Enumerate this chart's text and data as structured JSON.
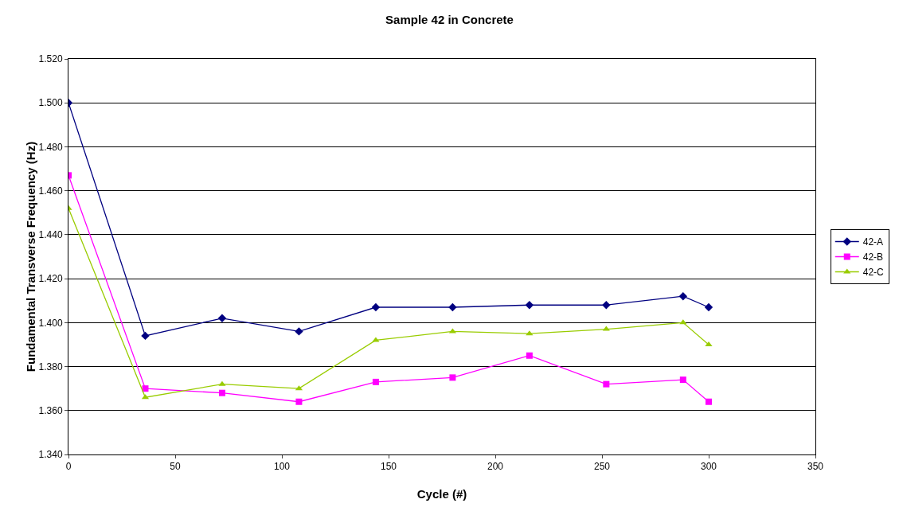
{
  "chart_data": {
    "type": "line",
    "title": "Sample 42 in Concrete",
    "xlabel": "Cycle (#)",
    "ylabel": "Fundamental Transverse Frequency (Hz)",
    "x": [
      0,
      36,
      72,
      108,
      144,
      180,
      216,
      252,
      288,
      300
    ],
    "series": [
      {
        "name": "42-A",
        "color": "#000080",
        "marker": "diamond",
        "values": [
          1.5,
          1.394,
          1.402,
          1.396,
          1.407,
          1.407,
          1.408,
          1.408,
          1.412,
          1.407
        ]
      },
      {
        "name": "42-B",
        "color": "#ff00ff",
        "marker": "square",
        "values": [
          1.467,
          1.37,
          1.368,
          1.364,
          1.373,
          1.375,
          1.385,
          1.372,
          1.374,
          1.364
        ]
      },
      {
        "name": "42-C",
        "color": "#99cc00",
        "marker": "triangle",
        "values": [
          1.452,
          1.366,
          1.372,
          1.37,
          1.392,
          1.396,
          1.395,
          1.397,
          1.4,
          1.39
        ]
      }
    ],
    "xlim": [
      0,
      350
    ],
    "xticks": [
      0,
      50,
      100,
      150,
      200,
      250,
      300,
      350
    ],
    "ylim": [
      1.34,
      1.52
    ],
    "yticks": [
      {
        "value": 1.34,
        "label": "1.340"
      },
      {
        "value": 1.36,
        "label": "1.360"
      },
      {
        "value": 1.38,
        "label": "1.380"
      },
      {
        "value": 1.4,
        "label": "1.400"
      },
      {
        "value": 1.42,
        "label": "1.420"
      },
      {
        "value": 1.44,
        "label": "1.440"
      },
      {
        "value": 1.46,
        "label": "1.460"
      },
      {
        "value": 1.48,
        "label": "1.480"
      },
      {
        "value": 1.5,
        "label": "1.500"
      },
      {
        "value": 1.52,
        "label": "1.520"
      }
    ],
    "grid": "y",
    "legend": "right",
    "line_style": "solid"
  }
}
